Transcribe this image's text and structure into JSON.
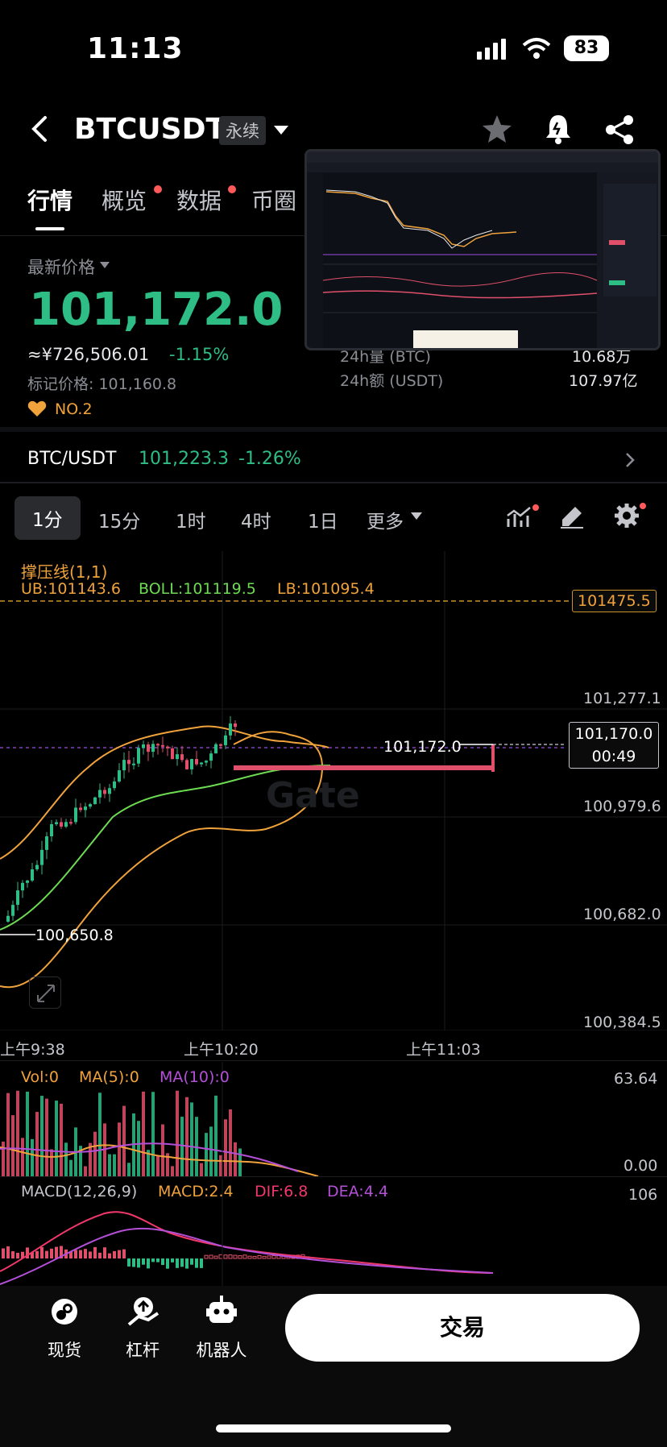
{
  "status_bar": {
    "time": "11:13",
    "battery": "83"
  },
  "header": {
    "symbol": "BTCUSDT",
    "contract_type": "永续"
  },
  "tabs": [
    "行情",
    "概览",
    "数据",
    "币圈"
  ],
  "price": {
    "label": "最新价格",
    "last": "101,172.0",
    "cny": "≈¥726,506.01",
    "change": "-1.15%",
    "mark_label": "标记价格: 101,160.8",
    "rank": "NO.2",
    "vol_btc_label": "24h量 (BTC)",
    "vol_btc": "10.68万",
    "vol_usdt_label": "24h额 (USDT)",
    "vol_usdt": "107.97亿"
  },
  "spot_row": {
    "pair": "BTC/USDT",
    "price": "101,223.3",
    "change": "-1.26%"
  },
  "timeframes": [
    "1分",
    "15分",
    "1时",
    "4时",
    "1日",
    "更多"
  ],
  "main_chart": {
    "indicator_title": "撑压线(1,1)",
    "ub": "UB:101143.6",
    "boll": "BOLL:101119.5",
    "lb": "LB:101095.4",
    "resistance_tag": "101475.5",
    "y_labels": [
      "101,277.1",
      "100,979.6",
      "100,682.0",
      "100,384.5"
    ],
    "current_price_tag": "101,170.0",
    "countdown": "00:49",
    "last_price_label": "101,172.0",
    "low_label": "100,650.8",
    "watermark": "Gate",
    "x_labels": [
      "上午9:38",
      "上午10:20",
      "上午11:03"
    ]
  },
  "volume_panel": {
    "vol": "Vol:0",
    "ma5": "MA(5):0",
    "ma10": "MA(10):0",
    "y_top": "63.64",
    "y_bottom": "0.00"
  },
  "macd_panel": {
    "title": "MACD(12,26,9)",
    "macd": "MACD:2.4",
    "dif": "DIF:6.8",
    "dea": "DEA:4.4",
    "y_top": "106"
  },
  "bottom_nav": {
    "spot": "现货",
    "margin": "杠杆",
    "bot": "机器人",
    "trade": "交易"
  },
  "colors": {
    "up": "#2ebd85",
    "down": "#e0506a",
    "accent": "#f0a23b",
    "boll_mid": "#6ddb52",
    "ma10": "#b44fd8"
  },
  "icons": [
    "back-arrow-icon",
    "dropdown-caret-icon",
    "star-icon",
    "bell-icon",
    "share-icon",
    "indicator-icon",
    "draw-pen-icon",
    "settings-gear-icon",
    "expand-icon",
    "spot-icon",
    "margin-icon",
    "robot-icon"
  ]
}
